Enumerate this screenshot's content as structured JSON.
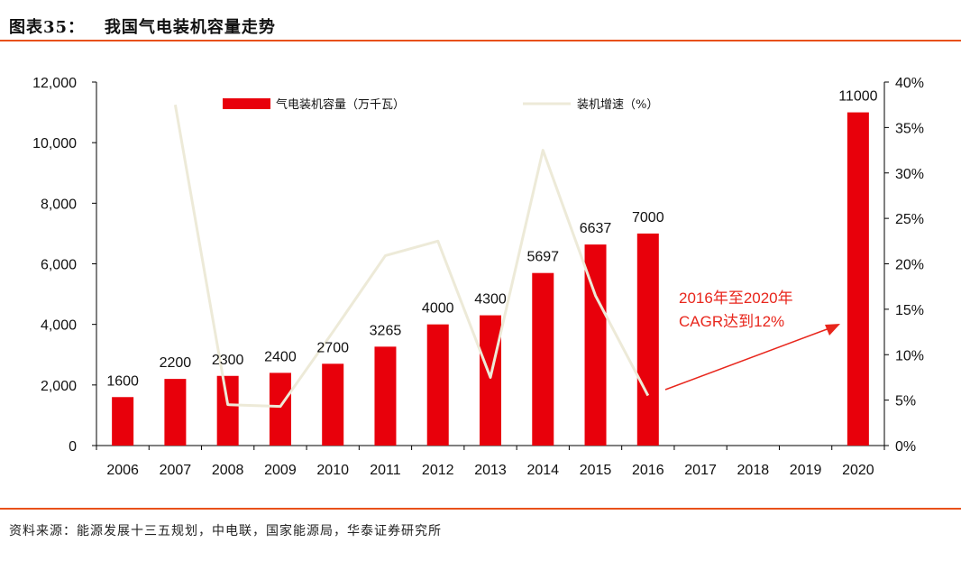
{
  "header": {
    "figure_title": "图表35：   我国气电装机容量走势"
  },
  "footer": {
    "source": "资料来源：能源发展十三五规划，中电联，国家能源局，华泰证券研究所"
  },
  "colors": {
    "bar": "#E8000B",
    "line": "#EDEAD8",
    "annotation": "#E8261C",
    "rule": "#E8511A",
    "axis": "#000000"
  },
  "chart_data": {
    "type": "bar",
    "title": "",
    "categories": [
      "2006",
      "2007",
      "2008",
      "2009",
      "2010",
      "2011",
      "2012",
      "2013",
      "2014",
      "2015",
      "2016",
      "2017",
      "2018",
      "2019",
      "2020"
    ],
    "series": [
      {
        "name": "气电装机容量（万千瓦）",
        "type": "bar",
        "axis": "left",
        "values": [
          1600,
          2200,
          2300,
          2400,
          2700,
          3265,
          4000,
          4300,
          5697,
          6637,
          7000,
          null,
          null,
          null,
          11000
        ],
        "labels": [
          "1600",
          "2200",
          "2300",
          "2400",
          "2700",
          "3265",
          "4000",
          "4300",
          "5697",
          "6637",
          "7000",
          "",
          "",
          "",
          "11000"
        ]
      },
      {
        "name": "装机增速（%）",
        "type": "line",
        "axis": "right",
        "values": [
          null,
          37.5,
          4.5,
          4.3,
          12.5,
          20.9,
          22.5,
          7.5,
          32.5,
          16.5,
          5.5,
          null,
          null,
          null,
          null
        ]
      }
    ],
    "y_left": {
      "lim": [
        0,
        12000
      ],
      "ticks": [
        0,
        2000,
        4000,
        6000,
        8000,
        10000,
        12000
      ],
      "tick_labels": [
        "0",
        "2,000",
        "4,000",
        "6,000",
        "8,000",
        "10,000",
        "12,000"
      ]
    },
    "y_right": {
      "lim": [
        0,
        40
      ],
      "ticks": [
        0,
        5,
        10,
        15,
        20,
        25,
        30,
        35,
        40
      ],
      "tick_labels": [
        "0%",
        "5%",
        "10%",
        "15%",
        "20%",
        "25%",
        "30%",
        "35%",
        "40%"
      ]
    },
    "legend": {
      "position": "top"
    },
    "grid": false,
    "annotation": {
      "lines": [
        "2016年至2020年",
        "CAGR达到12%"
      ]
    }
  }
}
